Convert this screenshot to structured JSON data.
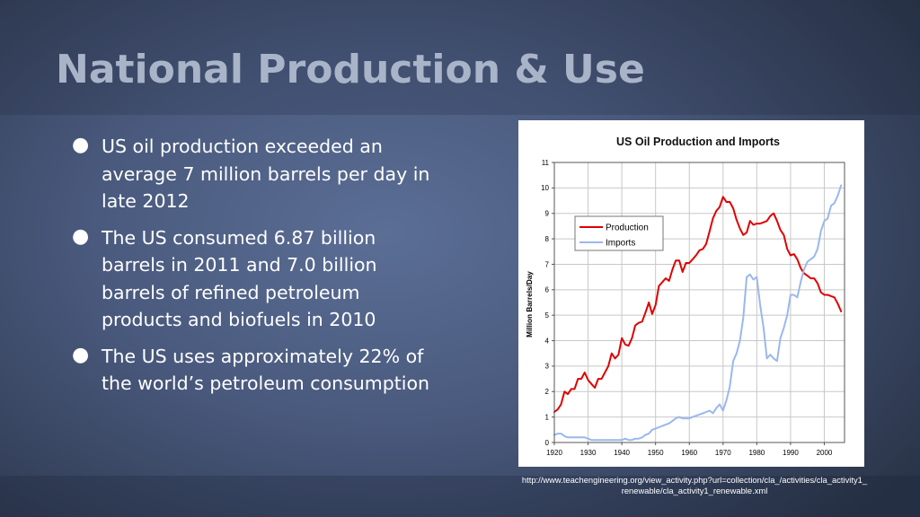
{
  "slide": {
    "title": "National Production & Use",
    "bullets": [
      "US oil production exceeded an average 7 million barrels per day in late 2012",
      "The US consumed 6.87 billion barrels in 2011 and 7.0 billion barrels of refined petroleum products and biofuels in 2010",
      "The US uses approximately 22% of the world’s petroleum consumption"
    ],
    "bullet_glyph": "●",
    "source": "http://www.teachengineering.org/view_activity.php?url=collection/cla_/activities/cla_activity1_renewable/cla_activity1_renewable.xml"
  },
  "colors": {
    "title_text": "#a9b4c9",
    "body_text": "#ffffff",
    "production_line": "#e00000",
    "imports_line": "#99b8ee"
  },
  "chart_data": {
    "type": "line",
    "title": "US Oil Production and Imports",
    "xlabel": "",
    "ylabel": "Million Barrels/Day",
    "xlim": [
      1920,
      2006
    ],
    "ylim": [
      0,
      11
    ],
    "x_ticks": [
      1920,
      1930,
      1940,
      1950,
      1960,
      1970,
      1980,
      1990,
      2000
    ],
    "y_ticks": [
      0,
      1,
      2,
      3,
      4,
      5,
      6,
      7,
      8,
      9,
      10,
      11
    ],
    "grid": true,
    "legend_position": "top-left",
    "series": [
      {
        "name": "Production",
        "color": "#e00000",
        "x": [
          1920,
          1921,
          1922,
          1923,
          1924,
          1925,
          1926,
          1927,
          1928,
          1929,
          1930,
          1931,
          1932,
          1933,
          1934,
          1935,
          1936,
          1937,
          1938,
          1939,
          1940,
          1941,
          1942,
          1943,
          1944,
          1945,
          1946,
          1947,
          1948,
          1949,
          1950,
          1951,
          1952,
          1953,
          1954,
          1955,
          1956,
          1957,
          1958,
          1959,
          1960,
          1961,
          1962,
          1963,
          1964,
          1965,
          1966,
          1967,
          1968,
          1969,
          1970,
          1971,
          1972,
          1973,
          1974,
          1975,
          1976,
          1977,
          1978,
          1979,
          1980,
          1981,
          1982,
          1983,
          1984,
          1985,
          1986,
          1987,
          1988,
          1989,
          1990,
          1991,
          1992,
          1993,
          1994,
          1995,
          1996,
          1997,
          1998,
          1999,
          2000,
          2001,
          2002,
          2003,
          2004,
          2005
        ],
        "values": [
          1.2,
          1.3,
          1.5,
          2.0,
          1.9,
          2.1,
          2.1,
          2.5,
          2.5,
          2.75,
          2.45,
          2.3,
          2.15,
          2.5,
          2.5,
          2.75,
          3.0,
          3.5,
          3.3,
          3.45,
          4.1,
          3.85,
          3.8,
          4.1,
          4.6,
          4.7,
          4.75,
          5.1,
          5.5,
          5.05,
          5.4,
          6.15,
          6.3,
          6.45,
          6.35,
          6.8,
          7.15,
          7.15,
          6.7,
          7.05,
          7.05,
          7.2,
          7.35,
          7.55,
          7.6,
          7.8,
          8.3,
          8.8,
          9.1,
          9.25,
          9.65,
          9.45,
          9.45,
          9.2,
          8.75,
          8.4,
          8.15,
          8.25,
          8.7,
          8.55,
          8.6,
          8.6,
          8.65,
          8.7,
          8.9,
          9.0,
          8.7,
          8.35,
          8.15,
          7.6,
          7.35,
          7.4,
          7.2,
          6.85,
          6.65,
          6.55,
          6.45,
          6.45,
          6.25,
          5.9,
          5.8,
          5.8,
          5.75,
          5.7,
          5.45,
          5.15
        ]
      },
      {
        "name": "Imports",
        "color": "#99b8ee",
        "x": [
          1920,
          1921,
          1922,
          1923,
          1924,
          1925,
          1926,
          1927,
          1928,
          1929,
          1930,
          1931,
          1932,
          1933,
          1934,
          1935,
          1936,
          1937,
          1938,
          1939,
          1940,
          1941,
          1942,
          1943,
          1944,
          1945,
          1946,
          1947,
          1948,
          1949,
          1950,
          1951,
          1952,
          1953,
          1954,
          1955,
          1956,
          1957,
          1958,
          1959,
          1960,
          1961,
          1962,
          1963,
          1964,
          1965,
          1966,
          1967,
          1968,
          1969,
          1970,
          1971,
          1972,
          1973,
          1974,
          1975,
          1976,
          1977,
          1978,
          1979,
          1980,
          1981,
          1982,
          1983,
          1984,
          1985,
          1986,
          1987,
          1988,
          1989,
          1990,
          1991,
          1992,
          1993,
          1994,
          1995,
          1996,
          1997,
          1998,
          1999,
          2000,
          2001,
          2002,
          2003,
          2004,
          2005
        ],
        "values": [
          0.3,
          0.35,
          0.35,
          0.25,
          0.2,
          0.2,
          0.2,
          0.2,
          0.2,
          0.2,
          0.15,
          0.1,
          0.1,
          0.1,
          0.1,
          0.1,
          0.1,
          0.1,
          0.1,
          0.1,
          0.1,
          0.15,
          0.1,
          0.1,
          0.15,
          0.15,
          0.2,
          0.3,
          0.35,
          0.5,
          0.55,
          0.6,
          0.65,
          0.7,
          0.75,
          0.85,
          0.95,
          1.0,
          0.95,
          0.95,
          0.95,
          1.0,
          1.05,
          1.1,
          1.15,
          1.2,
          1.25,
          1.15,
          1.35,
          1.5,
          1.25,
          1.65,
          2.2,
          3.2,
          3.5,
          4.0,
          4.9,
          6.5,
          6.6,
          6.4,
          6.5,
          5.4,
          4.5,
          3.3,
          3.45,
          3.3,
          3.2,
          4.1,
          4.5,
          5.0,
          5.8,
          5.8,
          5.7,
          6.3,
          6.8,
          7.1,
          7.2,
          7.3,
          7.6,
          8.3,
          8.7,
          8.8,
          9.3,
          9.4,
          9.7,
          10.1
        ]
      }
    ]
  }
}
